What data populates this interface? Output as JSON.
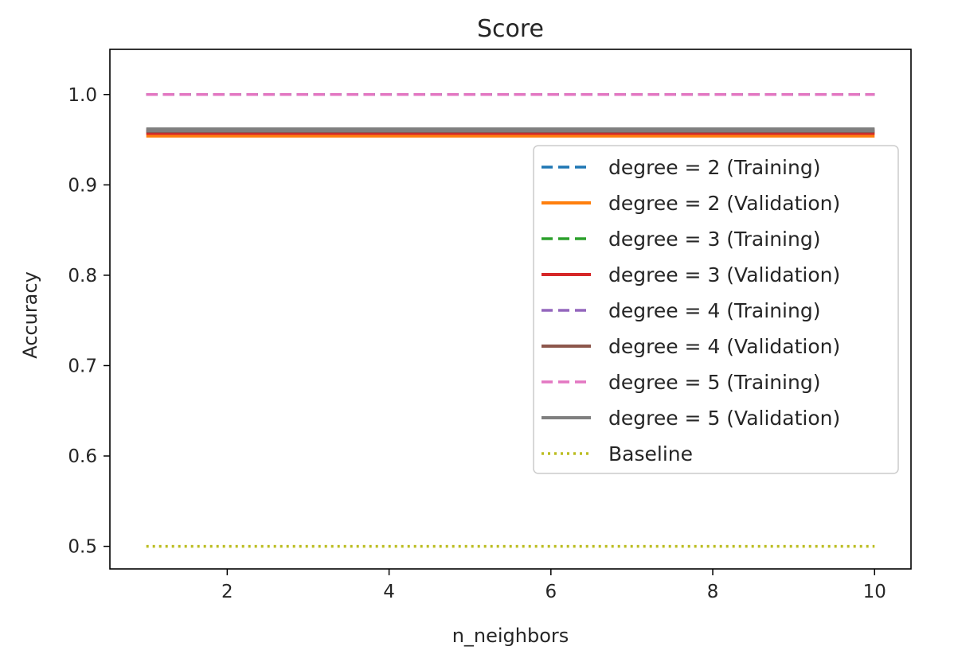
{
  "chart_data": {
    "type": "line",
    "title": "Score",
    "xlabel": "n_neighbors",
    "ylabel": "Accuracy",
    "xlim": [
      0.55,
      10.45
    ],
    "ylim": [
      0.475,
      1.05
    ],
    "xticks": [
      2,
      4,
      6,
      8,
      10
    ],
    "yticks": [
      0.5,
      0.6,
      0.7,
      0.8,
      0.9,
      1.0
    ],
    "xtick_labels": [
      "2",
      "4",
      "6",
      "8",
      "10"
    ],
    "ytick_labels": [
      "0.5",
      "0.6",
      "0.7",
      "0.8",
      "0.9",
      "1.0"
    ],
    "grid": false,
    "legend_position": "right",
    "x": [
      1,
      2,
      3,
      4,
      5,
      6,
      7,
      8,
      9,
      10
    ],
    "series": [
      {
        "name": "degree = 2 (Training)",
        "color": "#1f77b4",
        "style": "dashed",
        "values": [
          1.0,
          1.0,
          1.0,
          1.0,
          1.0,
          1.0,
          1.0,
          1.0,
          1.0,
          1.0
        ]
      },
      {
        "name": "degree = 2 (Validation)",
        "color": "#ff7f0e",
        "style": "solid",
        "values": [
          0.955,
          0.955,
          0.955,
          0.955,
          0.955,
          0.955,
          0.955,
          0.955,
          0.955,
          0.955
        ]
      },
      {
        "name": "degree = 3 (Training)",
        "color": "#2ca02c",
        "style": "dashed",
        "values": [
          1.0,
          1.0,
          1.0,
          1.0,
          1.0,
          1.0,
          1.0,
          1.0,
          1.0,
          1.0
        ]
      },
      {
        "name": "degree = 3 (Validation)",
        "color": "#d62728",
        "style": "solid",
        "values": [
          0.958,
          0.958,
          0.958,
          0.958,
          0.958,
          0.958,
          0.958,
          0.958,
          0.958,
          0.958
        ]
      },
      {
        "name": "degree = 4 (Training)",
        "color": "#9467bd",
        "style": "dashed",
        "values": [
          1.0,
          1.0,
          1.0,
          1.0,
          1.0,
          1.0,
          1.0,
          1.0,
          1.0,
          1.0
        ]
      },
      {
        "name": "degree = 4 (Validation)",
        "color": "#8c564b",
        "style": "solid",
        "values": [
          0.96,
          0.96,
          0.96,
          0.96,
          0.96,
          0.96,
          0.96,
          0.96,
          0.96,
          0.96
        ]
      },
      {
        "name": "degree = 5 (Training)",
        "color": "#e377c2",
        "style": "dashed",
        "values": [
          1.0,
          1.0,
          1.0,
          1.0,
          1.0,
          1.0,
          1.0,
          1.0,
          1.0,
          1.0
        ]
      },
      {
        "name": "degree = 5 (Validation)",
        "color": "#7f7f7f",
        "style": "solid",
        "values": [
          0.961,
          0.961,
          0.961,
          0.961,
          0.961,
          0.961,
          0.961,
          0.961,
          0.961,
          0.961
        ]
      },
      {
        "name": "Baseline",
        "color": "#bcbd22",
        "style": "dotted",
        "values": [
          0.5,
          0.5,
          0.5,
          0.5,
          0.5,
          0.5,
          0.5,
          0.5,
          0.5,
          0.5
        ]
      }
    ]
  }
}
